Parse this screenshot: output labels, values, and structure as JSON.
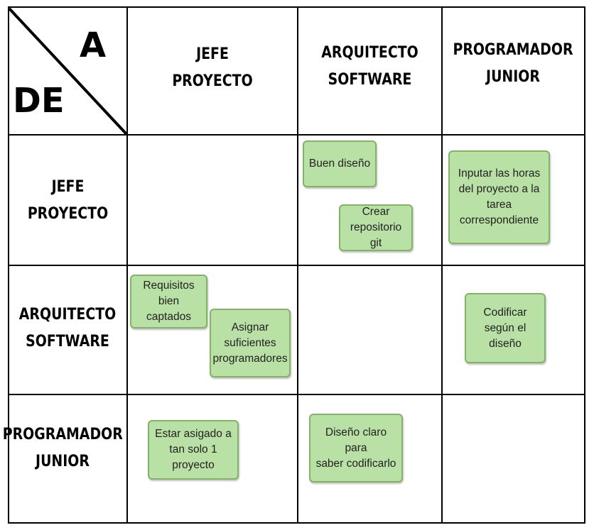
{
  "corner": {
    "to_label": "A",
    "from_label": "DE"
  },
  "columns": [
    {
      "line1": "JEFE",
      "line2": "PROYECTO"
    },
    {
      "line1": "ARQUITECTO",
      "line2": "SOFTWARE"
    },
    {
      "line1": "PROGRAMADOR",
      "line2": "JUNIOR"
    }
  ],
  "rows": [
    {
      "line1": "JEFE",
      "line2": "PROYECTO"
    },
    {
      "line1": "ARQUITECTO",
      "line2": "SOFTWARE"
    },
    {
      "line1": "PROGRAMADOR",
      "line2": "JUNIOR"
    }
  ],
  "notes": {
    "jefe_to_arquitecto_1": "Buen diseño",
    "jefe_to_arquitecto_2": "Crear\nrepositorio git",
    "jefe_to_programador": "Inputar las horas\ndel proyecto a la\ntarea\ncorrespondiente",
    "arquitecto_to_jefe_1": "Requisitos\nbien captados",
    "arquitecto_to_jefe_2": "Asignar\nsuficientes\nprogramadores",
    "arquitecto_to_programador": "Codificar\nsegún el\ndiseño",
    "programador_to_jefe": "Estar asigado a\ntan solo 1\nproyecto",
    "programador_to_arquitecto": "Diseño claro para\nsaber codificarlo"
  },
  "colors": {
    "note_fill": "#b9e0a5",
    "note_border": "#82b366",
    "grid": "#000000"
  }
}
